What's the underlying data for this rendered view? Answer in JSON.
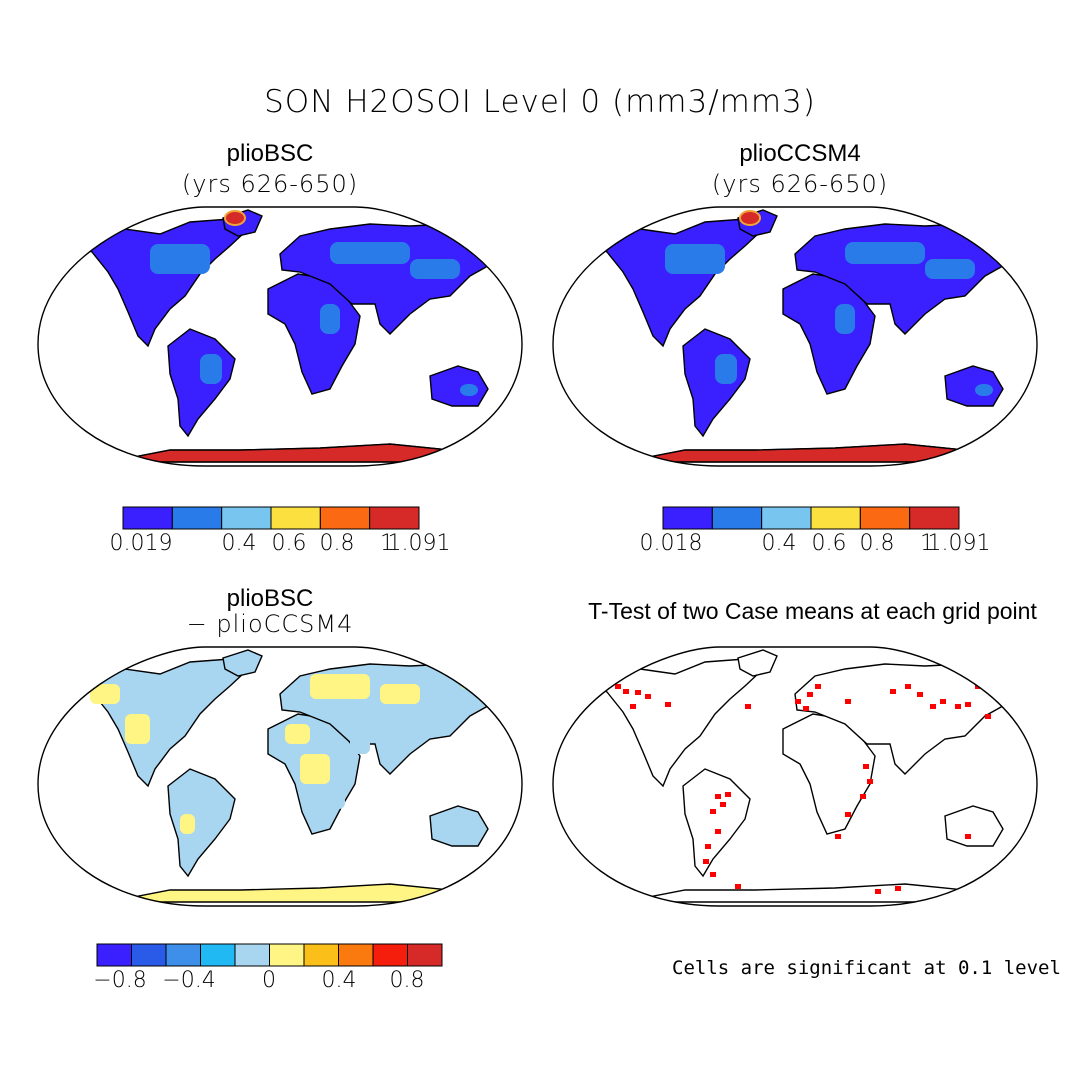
{
  "title": "SON H2OSOI Level 0 (mm3/mm3)",
  "panels": {
    "top_left": {
      "name": "plioBSC",
      "subtitle": "(yrs 626-650)"
    },
    "top_right": {
      "name": "plioCCSM4",
      "subtitle": "(yrs 626-650)"
    },
    "bottom_left": {
      "name": "plioBSC",
      "subtitle": "− plioCCSM4"
    },
    "bottom_right": {
      "name": "T-Test of two Case means at each grid point"
    }
  },
  "colorbars": {
    "top_left": {
      "colors": [
        "#3a1fff",
        "#2a7bea",
        "#78c6ef",
        "#fbe03f",
        "#fb6a12",
        "#d62a28"
      ],
      "labels": [
        "0.019",
        "0.4",
        "0.6",
        "0.8",
        "1",
        "1.091"
      ]
    },
    "top_right": {
      "colors": [
        "#3a1fff",
        "#2a7bea",
        "#78c6ef",
        "#fbe03f",
        "#fb6a12",
        "#d62a28"
      ],
      "labels": [
        "0.018",
        "0.4",
        "0.6",
        "0.8",
        "1",
        "1.091"
      ]
    },
    "bottom_left": {
      "colors": [
        "#3a1fff",
        "#2a5be8",
        "#3d8fe9",
        "#21b9f4",
        "#a8d6f0",
        "#fef584",
        "#fbbf1a",
        "#fb7a10",
        "#f51d0c",
        "#d62a28"
      ],
      "labels": [
        "−0.8",
        "−0.4",
        "0",
        "0.4",
        "0.8"
      ]
    }
  },
  "map_colors": {
    "land_low": "#3a1fff",
    "land_mid": "#2a7bea",
    "ice": "#d62a28",
    "diff_pos": "#fef584",
    "diff_neg": "#a8d6f0",
    "significant": "#ff0000"
  },
  "significance_note": "Cells are significant at 0.1 level"
}
